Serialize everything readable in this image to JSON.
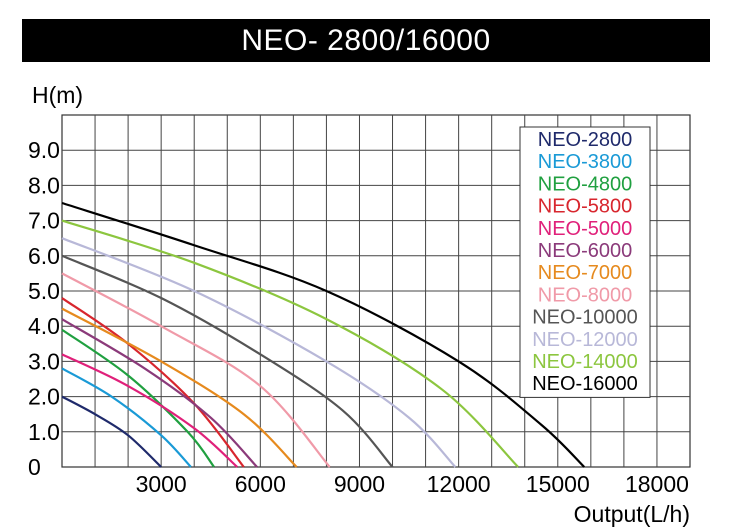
{
  "chart_data": {
    "type": "line",
    "title": "NEO- 2800/16000",
    "xlabel": "Output(L/h)",
    "ylabel": "H(m)",
    "xlim": [
      0,
      19000
    ],
    "ylim": [
      0,
      10
    ],
    "x_ticks": [
      "3000",
      "6000",
      "9000",
      "12000",
      "15000",
      "18000"
    ],
    "x_tick_values": [
      3000,
      6000,
      9000,
      12000,
      15000,
      18000
    ],
    "y_ticks": [
      "0",
      "1.0",
      "2.0",
      "3.0",
      "4.0",
      "5.0",
      "6.0",
      "7.0",
      "8.0",
      "9.0"
    ],
    "y_tick_values": [
      0,
      1,
      2,
      3,
      4,
      5,
      6,
      7,
      8,
      9
    ],
    "grid": true,
    "legend": "top-right",
    "series": [
      {
        "name": "NEO-2800",
        "color": "#1f2a6b",
        "points": [
          [
            0,
            2.0
          ],
          [
            1000,
            1.5
          ],
          [
            2000,
            0.9
          ],
          [
            3000,
            0.0
          ]
        ]
      },
      {
        "name": "NEO-3800",
        "color": "#1a9ad6",
        "points": [
          [
            0,
            2.8
          ],
          [
            1500,
            2.0
          ],
          [
            3000,
            0.9
          ],
          [
            3900,
            0.0
          ]
        ]
      },
      {
        "name": "NEO-4800",
        "color": "#20a040",
        "points": [
          [
            0,
            3.9
          ],
          [
            2000,
            2.6
          ],
          [
            3800,
            1.0
          ],
          [
            4600,
            0.0
          ]
        ]
      },
      {
        "name": "NEO-5800",
        "color": "#d8262e",
        "points": [
          [
            0,
            4.8
          ],
          [
            2000,
            3.5
          ],
          [
            4000,
            1.8
          ],
          [
            5500,
            0.0
          ]
        ]
      },
      {
        "name": "NEO-5000",
        "color": "#e0207a",
        "points": [
          [
            0,
            3.2
          ],
          [
            2000,
            2.3
          ],
          [
            4000,
            1.1
          ],
          [
            5300,
            0.0
          ]
        ]
      },
      {
        "name": "NEO-6000",
        "color": "#8b3a7a",
        "points": [
          [
            0,
            4.2
          ],
          [
            2500,
            2.8
          ],
          [
            4500,
            1.4
          ],
          [
            5900,
            0.0
          ]
        ]
      },
      {
        "name": "NEO-7000",
        "color": "#e68a1e",
        "points": [
          [
            0,
            4.5
          ],
          [
            3000,
            3.0
          ],
          [
            5500,
            1.5
          ],
          [
            7100,
            0.0
          ]
        ]
      },
      {
        "name": "NEO-8000",
        "color": "#f09aa8",
        "points": [
          [
            0,
            5.5
          ],
          [
            3000,
            4.0
          ],
          [
            6000,
            2.3
          ],
          [
            8100,
            0.0
          ]
        ]
      },
      {
        "name": "NEO-10000",
        "color": "#555555",
        "points": [
          [
            0,
            6.0
          ],
          [
            3000,
            4.8
          ],
          [
            6000,
            3.2
          ],
          [
            8500,
            1.6
          ],
          [
            10000,
            0.0
          ]
        ]
      },
      {
        "name": "NEO-12000",
        "color": "#b8b8d8",
        "points": [
          [
            0,
            6.5
          ],
          [
            4000,
            5.0
          ],
          [
            8000,
            3.0
          ],
          [
            10500,
            1.4
          ],
          [
            11900,
            0.0
          ]
        ]
      },
      {
        "name": "NEO-14000",
        "color": "#8cc63f",
        "points": [
          [
            0,
            7.0
          ],
          [
            4000,
            5.8
          ],
          [
            8000,
            4.2
          ],
          [
            11500,
            2.2
          ],
          [
            13800,
            0.0
          ]
        ]
      },
      {
        "name": "NEO-16000",
        "color": "#000000",
        "points": [
          [
            0,
            7.5
          ],
          [
            4000,
            6.3
          ],
          [
            8000,
            5.0
          ],
          [
            12000,
            3.0
          ],
          [
            14500,
            1.2
          ],
          [
            15800,
            0.0
          ]
        ]
      }
    ]
  }
}
